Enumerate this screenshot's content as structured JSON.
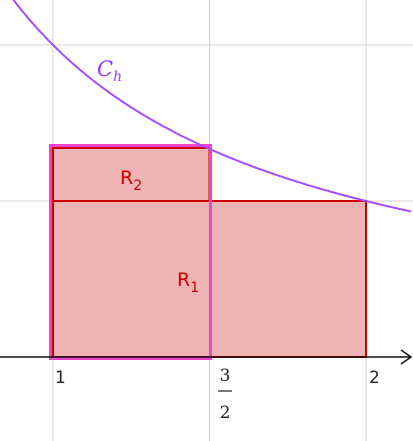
{
  "curve": {
    "label": "C",
    "subscript": "h"
  },
  "rectangles": [
    {
      "label": "R",
      "subscript": "1"
    },
    {
      "label": "R",
      "subscript": "2"
    }
  ],
  "x_axis": {
    "ticks": [
      "1",
      {
        "numerator": "3",
        "denominator": "2"
      },
      "2"
    ]
  }
}
